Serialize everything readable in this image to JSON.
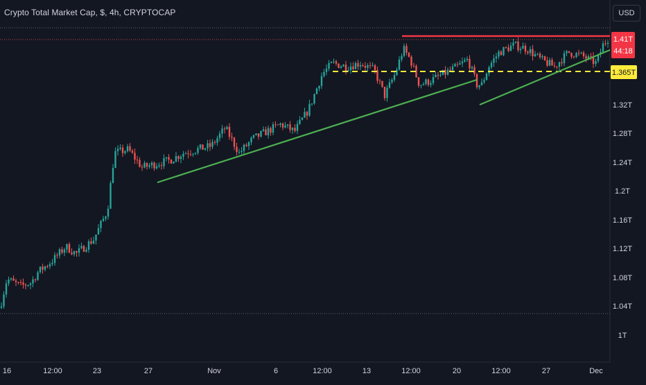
{
  "header": {
    "title": "Crypto Total Market Cap, $, 4h, CRYPTOCAP",
    "currency": "USD"
  },
  "price_scale": {
    "tick_labels": [
      "1.32T",
      "1.28T",
      "1.24T",
      "1.2T",
      "1.16T",
      "1.12T",
      "1.08T",
      "1.04T",
      "1T"
    ],
    "current_price_label": "1.41T",
    "countdown_label": "44:18",
    "level_label": "1.365T"
  },
  "time_scale": {
    "tick_labels": [
      "16",
      "12:00",
      "23",
      "27",
      "Nov",
      "6",
      "12:00",
      "13",
      "12:00",
      "20",
      "12:00",
      "27",
      "Dec"
    ]
  },
  "colors": {
    "background": "#131722",
    "up": "#26a69a",
    "down": "#ef5350",
    "resistance": "#f23645",
    "support": "#4caf50",
    "level": "#ffeb3b",
    "grid": "#2a2e39",
    "text": "#d1d4dc"
  },
  "chart_data": {
    "type": "candlestick",
    "title": "Crypto Total Market Cap, $, 4h, CRYPTOCAP",
    "unit": "USD",
    "interval": "4h",
    "y_axis": {
      "ticks": [
        1.0,
        1.04,
        1.08,
        1.12,
        1.16,
        1.2,
        1.24,
        1.28,
        1.32
      ],
      "suffix": "T",
      "range": [
        0.97,
        1.43
      ]
    },
    "x_axis": {
      "ticks": [
        "16",
        "12:00",
        "23",
        "27",
        "Nov",
        "6",
        "12:00",
        "13",
        "12:00",
        "20",
        "12:00",
        "27",
        "Dec"
      ]
    },
    "last_price": 1.41,
    "anchors": [
      [
        0,
        1.035
      ],
      [
        10,
        1.075
      ],
      [
        30,
        1.065
      ],
      [
        45,
        1.07
      ],
      [
        55,
        1.085
      ],
      [
        75,
        1.1
      ],
      [
        95,
        1.12
      ],
      [
        110,
        1.11
      ],
      [
        135,
        1.13
      ],
      [
        155,
        1.17
      ],
      [
        165,
        1.25
      ],
      [
        185,
        1.255
      ],
      [
        205,
        1.23
      ],
      [
        225,
        1.235
      ],
      [
        245,
        1.24
      ],
      [
        265,
        1.25
      ],
      [
        285,
        1.255
      ],
      [
        305,
        1.26
      ],
      [
        325,
        1.285
      ],
      [
        345,
        1.25
      ],
      [
        365,
        1.27
      ],
      [
        385,
        1.28
      ],
      [
        405,
        1.29
      ],
      [
        425,
        1.28
      ],
      [
        445,
        1.31
      ],
      [
        465,
        1.36
      ],
      [
        480,
        1.375
      ],
      [
        500,
        1.37
      ],
      [
        520,
        1.375
      ],
      [
        540,
        1.365
      ],
      [
        555,
        1.33
      ],
      [
        570,
        1.36
      ],
      [
        582,
        1.395
      ],
      [
        592,
        1.38
      ],
      [
        605,
        1.345
      ],
      [
        620,
        1.35
      ],
      [
        640,
        1.36
      ],
      [
        660,
        1.37
      ],
      [
        675,
        1.38
      ],
      [
        688,
        1.345
      ],
      [
        695,
        1.345
      ],
      [
        705,
        1.37
      ],
      [
        720,
        1.39
      ],
      [
        742,
        1.4
      ],
      [
        760,
        1.395
      ],
      [
        780,
        1.38
      ],
      [
        800,
        1.37
      ],
      [
        820,
        1.39
      ],
      [
        840,
        1.385
      ],
      [
        860,
        1.375
      ],
      [
        870,
        1.4
      ],
      [
        878,
        1.41
      ]
    ],
    "annotations": {
      "resistance_line": {
        "value": 1.407,
        "from": "Nov 15",
        "to": "Dec"
      },
      "level_line": {
        "value": 1.365,
        "label": "1.365T"
      },
      "support_line_1": {
        "from": [
          1.212,
          "Oct 27"
        ],
        "to": [
          1.354,
          "Nov 21"
        ]
      },
      "support_line_2": {
        "from": [
          1.318,
          "Nov 21"
        ],
        "to": [
          1.39,
          "Dec"
        ]
      },
      "reference_lines": [
        1.42,
        1.027
      ]
    }
  }
}
